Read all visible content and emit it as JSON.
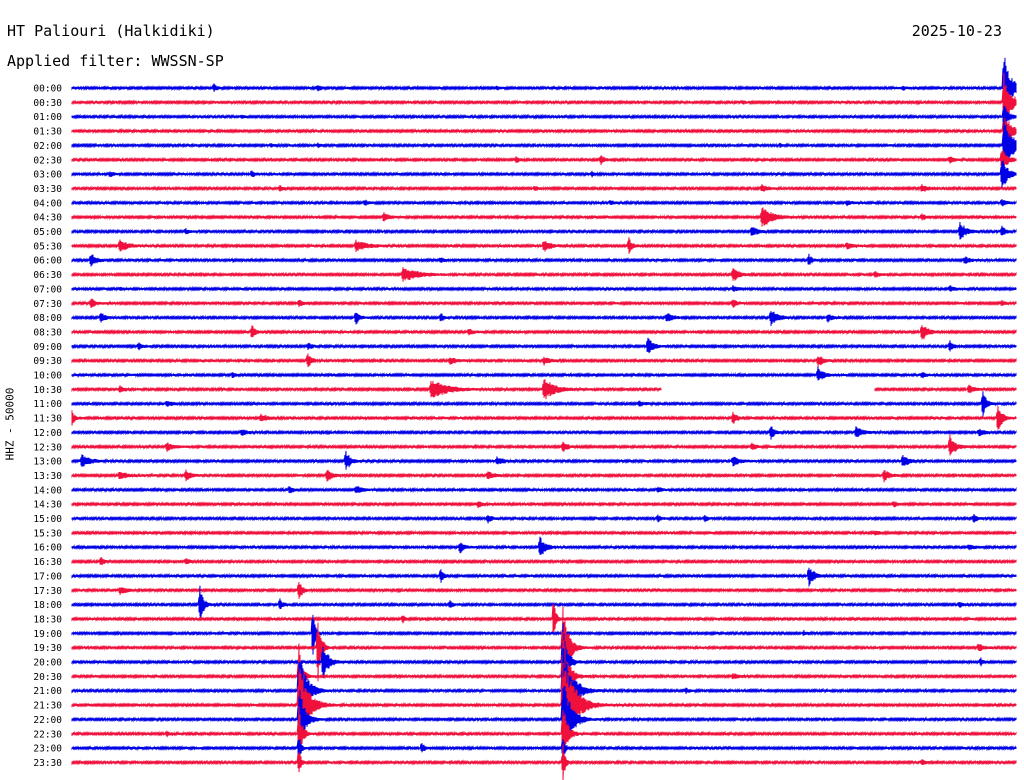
{
  "header": {
    "station": "HT Paliouri (Halkidiki)",
    "date": "2025-10-23",
    "filter": "Applied filter: WWSSN-SP"
  },
  "channel_label": "HHZ - 50000",
  "chart_data": {
    "type": "line",
    "subtype": "helicorder",
    "colors": {
      "even": "#0000e6",
      "odd": "#f0103c"
    },
    "grid": false,
    "rows": [
      {
        "label": "00:00",
        "events": [
          [
            0.15,
            4,
            3
          ],
          [
            0.26,
            3,
            3
          ],
          [
            0.45,
            2,
            2
          ],
          [
            0.88,
            2,
            3
          ],
          [
            0.987,
            38,
            6
          ]
        ]
      },
      {
        "label": "00:30",
        "events": [
          [
            0.71,
            2,
            3
          ],
          [
            0.987,
            30,
            6
          ]
        ]
      },
      {
        "label": "01:00",
        "events": [
          [
            0.18,
            2,
            2
          ],
          [
            0.987,
            14,
            4
          ]
        ]
      },
      {
        "label": "01:30",
        "events": [
          [
            0.987,
            22,
            6
          ]
        ]
      },
      {
        "label": "02:00",
        "events": [
          [
            0.21,
            2,
            3
          ],
          [
            0.26,
            2,
            3
          ],
          [
            0.75,
            2,
            2
          ],
          [
            0.987,
            28,
            8
          ]
        ]
      },
      {
        "label": "02:30",
        "events": [
          [
            0.47,
            3,
            4
          ],
          [
            0.56,
            5,
            3
          ],
          [
            0.93,
            3,
            4
          ],
          [
            0.985,
            12,
            5
          ]
        ]
      },
      {
        "label": "03:00",
        "events": [
          [
            0.04,
            3,
            3
          ],
          [
            0.19,
            4,
            3
          ],
          [
            0.55,
            3,
            3
          ],
          [
            0.985,
            18,
            5
          ]
        ]
      },
      {
        "label": "03:30",
        "events": [
          [
            0.22,
            3,
            3
          ],
          [
            0.49,
            3,
            3
          ],
          [
            0.73,
            4,
            5
          ],
          [
            0.9,
            4,
            5
          ]
        ]
      },
      {
        "label": "04:00",
        "events": [
          [
            0.31,
            3,
            3
          ],
          [
            0.57,
            3,
            3
          ],
          [
            0.82,
            3,
            5
          ],
          [
            0.985,
            4,
            3
          ]
        ]
      },
      {
        "label": "04:30",
        "events": [
          [
            0.33,
            6,
            4
          ],
          [
            0.73,
            12,
            9
          ],
          [
            0.9,
            3,
            4
          ]
        ]
      },
      {
        "label": "05:00",
        "events": [
          [
            0.12,
            3,
            3
          ],
          [
            0.72,
            6,
            5
          ],
          [
            0.94,
            12,
            5
          ],
          [
            0.985,
            6,
            3
          ]
        ]
      },
      {
        "label": "05:30",
        "events": [
          [
            0.05,
            7,
            7
          ],
          [
            0.3,
            6,
            10
          ],
          [
            0.5,
            6,
            6
          ],
          [
            0.59,
            8,
            3
          ],
          [
            0.82,
            4,
            5
          ]
        ]
      },
      {
        "label": "06:00",
        "events": [
          [
            0.02,
            7,
            5
          ],
          [
            0.39,
            3,
            3
          ],
          [
            0.78,
            7,
            3
          ],
          [
            0.945,
            4,
            5
          ]
        ]
      },
      {
        "label": "06:30",
        "events": [
          [
            0.35,
            7,
            14
          ],
          [
            0.7,
            8,
            5
          ],
          [
            0.85,
            3,
            5
          ]
        ]
      },
      {
        "label": "07:00",
        "events": [
          [
            0.05,
            2,
            3
          ],
          [
            0.7,
            3,
            5
          ],
          [
            0.93,
            3,
            5
          ]
        ]
      },
      {
        "label": "07:30",
        "events": [
          [
            0.02,
            5,
            4
          ],
          [
            0.24,
            4,
            4
          ],
          [
            0.7,
            4,
            4
          ],
          [
            0.985,
            3,
            3
          ]
        ]
      },
      {
        "label": "08:00",
        "events": [
          [
            0.03,
            5,
            5
          ],
          [
            0.3,
            9,
            3
          ],
          [
            0.39,
            6,
            3
          ],
          [
            0.63,
            5,
            5
          ],
          [
            0.74,
            9,
            6
          ],
          [
            0.8,
            5,
            4
          ]
        ]
      },
      {
        "label": "08:30",
        "events": [
          [
            0.19,
            8,
            3
          ],
          [
            0.42,
            3,
            5
          ],
          [
            0.9,
            10,
            5
          ]
        ]
      },
      {
        "label": "09:00",
        "events": [
          [
            0.07,
            4,
            4
          ],
          [
            0.25,
            3,
            4
          ],
          [
            0.61,
            9,
            5
          ],
          [
            0.93,
            6,
            3
          ]
        ]
      },
      {
        "label": "09:30",
        "events": [
          [
            0.25,
            8,
            3
          ],
          [
            0.4,
            4,
            6
          ],
          [
            0.5,
            4,
            5
          ],
          [
            0.79,
            6,
            5
          ]
        ]
      },
      {
        "label": "10:00",
        "events": [
          [
            0.17,
            4,
            2
          ],
          [
            0.79,
            8,
            5
          ],
          [
            0.9,
            3,
            4
          ]
        ]
      },
      {
        "label": "10:30",
        "events": [
          [
            0.05,
            4,
            4
          ],
          [
            0.38,
            10,
            14
          ],
          [
            0.5,
            12,
            9
          ],
          [
            0.95,
            4,
            5
          ]
        ],
        "gap": [
          0.625,
          0.85
        ]
      },
      {
        "label": "11:00",
        "events": [
          [
            0.1,
            3,
            5
          ],
          [
            0.6,
            3,
            5
          ],
          [
            0.965,
            14,
            3
          ]
        ]
      },
      {
        "label": "11:30",
        "events": [
          [
            0.0,
            7,
            3
          ],
          [
            0.2,
            4,
            6
          ],
          [
            0.7,
            6,
            4
          ],
          [
            0.98,
            16,
            4
          ]
        ]
      },
      {
        "label": "12:00",
        "events": [
          [
            0.18,
            3,
            5
          ],
          [
            0.74,
            9,
            3
          ],
          [
            0.83,
            6,
            6
          ],
          [
            0.96,
            4,
            5
          ]
        ]
      },
      {
        "label": "12:30",
        "events": [
          [
            0.1,
            5,
            6
          ],
          [
            0.52,
            5,
            4
          ],
          [
            0.72,
            4,
            4
          ],
          [
            0.93,
            12,
            5
          ]
        ]
      },
      {
        "label": "13:00",
        "events": [
          [
            0.01,
            7,
            7
          ],
          [
            0.29,
            11,
            4
          ],
          [
            0.45,
            4,
            6
          ],
          [
            0.7,
            5,
            6
          ],
          [
            0.88,
            7,
            5
          ]
        ]
      },
      {
        "label": "13:30",
        "events": [
          [
            0.05,
            5,
            6
          ],
          [
            0.12,
            6,
            5
          ],
          [
            0.27,
            6,
            5
          ],
          [
            0.44,
            4,
            6
          ],
          [
            0.86,
            6,
            5
          ]
        ]
      },
      {
        "label": "14:00",
        "events": [
          [
            0.23,
            5,
            3
          ],
          [
            0.3,
            4,
            6
          ],
          [
            0.62,
            3,
            5
          ]
        ]
      },
      {
        "label": "14:30",
        "events": [
          [
            0.43,
            3,
            4
          ],
          [
            0.87,
            4,
            3
          ]
        ]
      },
      {
        "label": "15:00",
        "events": [
          [
            0.44,
            5,
            3
          ],
          [
            0.62,
            4,
            3
          ],
          [
            0.67,
            4,
            3
          ],
          [
            0.955,
            5,
            3
          ]
        ]
      },
      {
        "label": "15:30",
        "events": [
          [
            0.85,
            3,
            4
          ]
        ]
      },
      {
        "label": "16:00",
        "events": [
          [
            0.41,
            7,
            4
          ],
          [
            0.495,
            12,
            5
          ],
          [
            0.95,
            3,
            5
          ]
        ]
      },
      {
        "label": "16:30",
        "events": [
          [
            0.03,
            5,
            3
          ],
          [
            0.12,
            3,
            4
          ]
        ]
      },
      {
        "label": "17:00",
        "events": [
          [
            0.39,
            8,
            3
          ],
          [
            0.78,
            11,
            5
          ]
        ]
      },
      {
        "label": "17:30",
        "events": [
          [
            0.05,
            4,
            6
          ],
          [
            0.24,
            12,
            3
          ]
        ]
      },
      {
        "label": "18:00",
        "events": [
          [
            0.135,
            24,
            3
          ],
          [
            0.22,
            6,
            3
          ],
          [
            0.4,
            4,
            3
          ],
          [
            0.94,
            3,
            3
          ]
        ]
      },
      {
        "label": "18:30",
        "events": [
          [
            0.35,
            5,
            2
          ],
          [
            0.51,
            28,
            2
          ]
        ]
      },
      {
        "label": "19:00",
        "events": [
          [
            0.255,
            34,
            2
          ],
          [
            0.775,
            3,
            2
          ]
        ]
      },
      {
        "label": "19:30",
        "events": [
          [
            0.26,
            44,
            3
          ],
          [
            0.52,
            48,
            5
          ],
          [
            0.96,
            5,
            4
          ]
        ]
      },
      {
        "label": "20:00",
        "events": [
          [
            0.265,
            22,
            5
          ],
          [
            0.52,
            44,
            4
          ],
          [
            0.962,
            6,
            2
          ]
        ]
      },
      {
        "label": "20:30",
        "events": [
          [
            0.24,
            38,
            3
          ],
          [
            0.52,
            44,
            5
          ],
          [
            0.7,
            3,
            5
          ]
        ]
      },
      {
        "label": "21:00",
        "events": [
          [
            0.24,
            42,
            7
          ],
          [
            0.52,
            52,
            8
          ],
          [
            0.65,
            3,
            3
          ]
        ]
      },
      {
        "label": "21:30",
        "events": [
          [
            0.24,
            46,
            8
          ],
          [
            0.52,
            56,
            10
          ]
        ]
      },
      {
        "label": "22:00",
        "events": [
          [
            0.24,
            40,
            5
          ],
          [
            0.52,
            46,
            7
          ]
        ]
      },
      {
        "label": "22:30",
        "events": [
          [
            0.24,
            32,
            3
          ],
          [
            0.52,
            34,
            4
          ],
          [
            0.1,
            3,
            3
          ]
        ]
      },
      {
        "label": "23:00",
        "events": [
          [
            0.37,
            6,
            3
          ],
          [
            0.24,
            16,
            2
          ],
          [
            0.52,
            14,
            2
          ]
        ]
      },
      {
        "label": "23:30",
        "events": [
          [
            0.24,
            18,
            2
          ],
          [
            0.52,
            20,
            2
          ],
          [
            0.9,
            3,
            3
          ]
        ]
      }
    ]
  }
}
